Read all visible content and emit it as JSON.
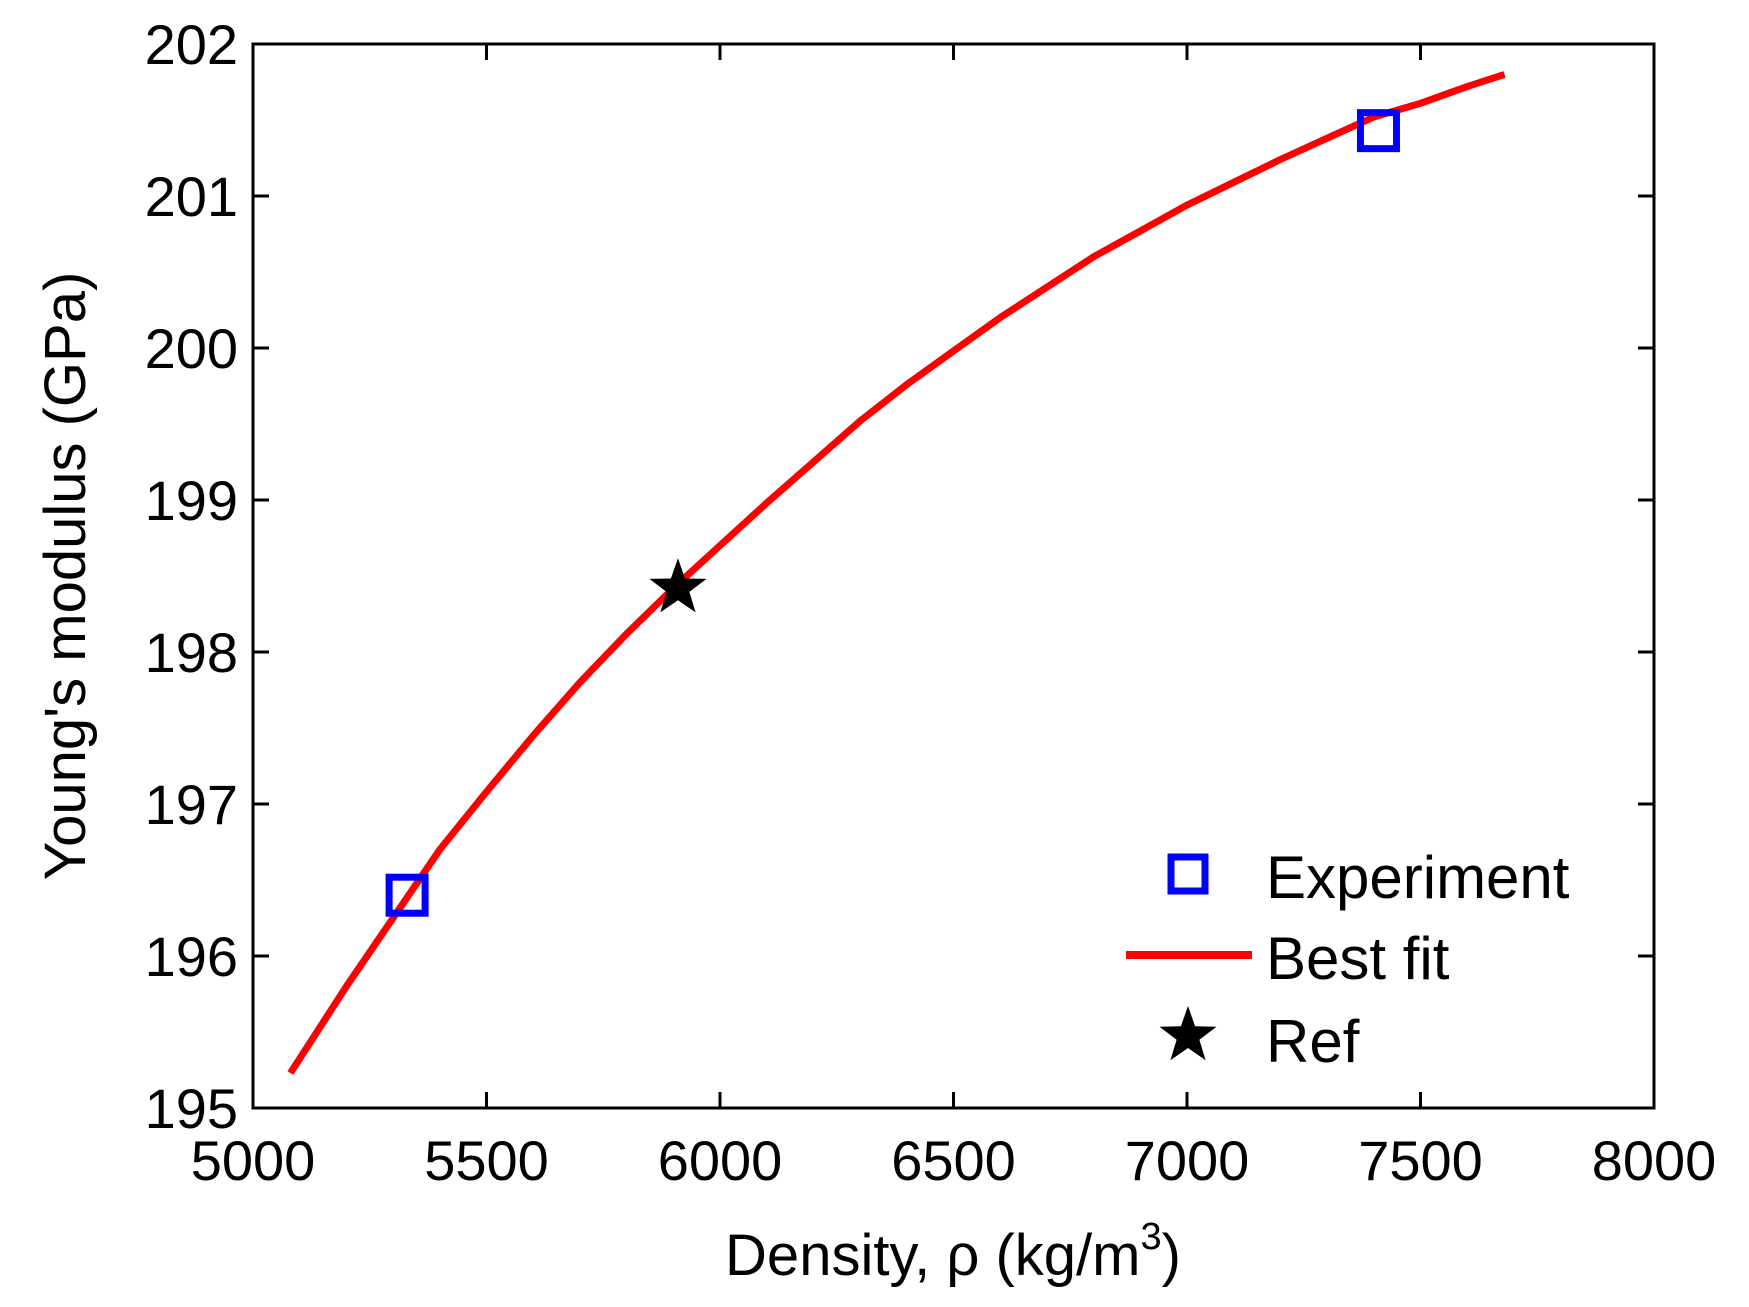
{
  "chart_data": {
    "type": "line",
    "xlabel": "Density, ρ (kg/m",
    "xlabel_sup": "3",
    "xlabel_end": ")",
    "ylabel": "Young's modulus (GPa)",
    "xlim": [
      5000,
      8000
    ],
    "ylim": [
      195,
      202
    ],
    "xticks": [
      5000,
      5500,
      6000,
      6500,
      7000,
      7500,
      8000
    ],
    "yticks": [
      195,
      196,
      197,
      198,
      199,
      200,
      201,
      202
    ],
    "xtick_labels": [
      "5000",
      "5500",
      "6000",
      "6500",
      "7000",
      "7500",
      "8000"
    ],
    "ytick_labels": [
      "195",
      "196",
      "197",
      "198",
      "199",
      "200",
      "201",
      "202"
    ],
    "grid": false,
    "legend_position": "bottom-right",
    "series": [
      {
        "name": "Experiment",
        "kind": "scatter",
        "marker": "square",
        "color": "#0000ff",
        "x": [
          5330,
          7410
        ],
        "y": [
          196.4,
          201.43
        ]
      },
      {
        "name": "Best fit",
        "kind": "line",
        "color": "#ff0000",
        "x": [
          5080,
          5200,
          5300,
          5400,
          5500,
          5600,
          5700,
          5800,
          5900,
          6000,
          6100,
          6200,
          6300,
          6400,
          6500,
          6600,
          6700,
          6800,
          6900,
          7000,
          7100,
          7200,
          7300,
          7400,
          7500,
          7600,
          7680
        ],
        "y": [
          195.23,
          195.8,
          196.25,
          196.7,
          197.08,
          197.45,
          197.8,
          198.12,
          198.42,
          198.7,
          198.98,
          199.25,
          199.52,
          199.76,
          199.98,
          200.2,
          200.4,
          200.6,
          200.77,
          200.94,
          201.09,
          201.24,
          201.38,
          201.52,
          201.61,
          201.72,
          201.8
        ]
      },
      {
        "name": "Ref",
        "kind": "scatter",
        "marker": "star",
        "color": "#000000",
        "x": [
          5910
        ],
        "y": [
          198.42
        ]
      }
    ]
  }
}
